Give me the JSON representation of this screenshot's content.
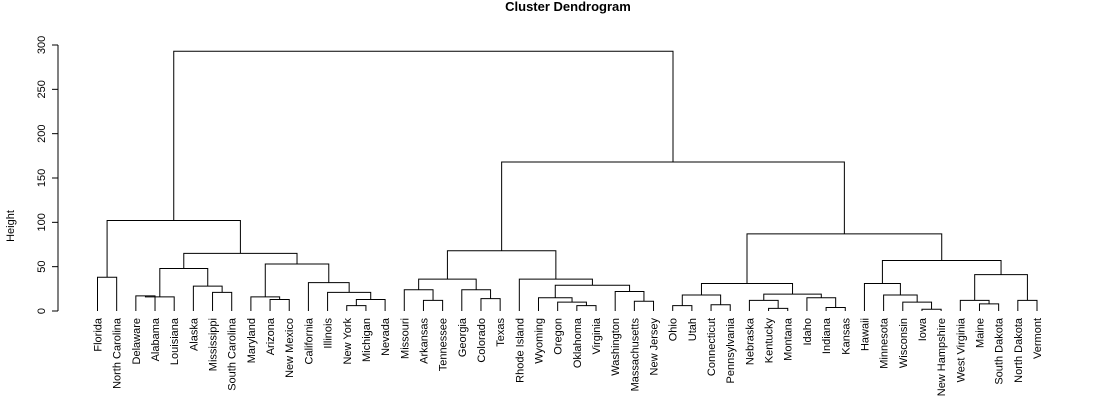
{
  "chart_data": {
    "type": "dendrogram",
    "title": "Cluster Dendrogram",
    "xlabel": "",
    "ylabel": "Height",
    "ylim": [
      0,
      300
    ],
    "yticks": [
      0,
      50,
      100,
      150,
      200,
      250,
      300
    ],
    "leaves": [
      "Florida",
      "North Carolina",
      "Delaware",
      "Alabama",
      "Louisiana",
      "Alaska",
      "Mississippi",
      "South Carolina",
      "Maryland",
      "Arizona",
      "New Mexico",
      "California",
      "Illinois",
      "New York",
      "Michigan",
      "Nevada",
      "Missouri",
      "Arkansas",
      "Tennessee",
      "Georgia",
      "Colorado",
      "Texas",
      "Rhode Island",
      "Wyoming",
      "Oregon",
      "Oklahoma",
      "Virginia",
      "Washington",
      "Massachusetts",
      "New Jersey",
      "Ohio",
      "Utah",
      "Connecticut",
      "Pennsylvania",
      "Nebraska",
      "Kentucky",
      "Montana",
      "Idaho",
      "Indiana",
      "Kansas",
      "Hawaii",
      "Minnesota",
      "Wisconsin",
      "Iowa",
      "New Hampshire",
      "West Virginia",
      "Maine",
      "South Dakota",
      "North Dakota",
      "Vermont"
    ],
    "merges": [
      {
        "left": "Delaware",
        "right": "Alabama",
        "height": 17
      },
      {
        "left": 1,
        "right": "Louisiana",
        "height": 16
      },
      {
        "left": "Mississippi",
        "right": "South Carolina",
        "height": 21
      },
      {
        "left": "Alaska",
        "right": 3,
        "height": 28
      },
      {
        "left": 2,
        "right": 4,
        "height": 48
      },
      {
        "left": "Arizona",
        "right": "New Mexico",
        "height": 13
      },
      {
        "left": "Maryland",
        "right": 6,
        "height": 16
      },
      {
        "left": "New York",
        "right": "Michigan",
        "height": 6
      },
      {
        "left": 8,
        "right": "Nevada",
        "height": 13
      },
      {
        "left": "Illinois",
        "right": 9,
        "height": 21
      },
      {
        "left": "California",
        "right": 10,
        "height": 32
      },
      {
        "left": 7,
        "right": 11,
        "height": 53
      },
      {
        "left": 5,
        "right": 12,
        "height": 65
      },
      {
        "left": "Florida",
        "right": "North Carolina",
        "height": 38
      },
      {
        "left": 14,
        "right": 13,
        "height": 102
      },
      {
        "left": "Arkansas",
        "right": "Tennessee",
        "height": 12
      },
      {
        "left": "Missouri",
        "right": 16,
        "height": 24
      },
      {
        "left": "Colorado",
        "right": "Texas",
        "height": 14
      },
      {
        "left": "Georgia",
        "right": 18,
        "height": 24
      },
      {
        "left": 17,
        "right": 19,
        "height": 36
      },
      {
        "left": "Oklahoma",
        "right": "Virginia",
        "height": 6
      },
      {
        "left": "Oregon",
        "right": 21,
        "height": 10
      },
      {
        "left": "Wyoming",
        "right": 22,
        "height": 15
      },
      {
        "left": "Massachusetts",
        "right": "New Jersey",
        "height": 11
      },
      {
        "left": "Washington",
        "right": 24,
        "height": 22
      },
      {
        "left": 23,
        "right": 25,
        "height": 29
      },
      {
        "left": "Rhode Island",
        "right": 26,
        "height": 36
      },
      {
        "left": 20,
        "right": 27,
        "height": 68
      },
      {
        "left": "Ohio",
        "right": "Utah",
        "height": 6
      },
      {
        "left": "Connecticut",
        "right": "Pennsylvania",
        "height": 7
      },
      {
        "left": 29,
        "right": 30,
        "height": 18
      },
      {
        "left": "Kentucky",
        "right": "Montana",
        "height": 3
      },
      {
        "left": "Nebraska",
        "right": 32,
        "height": 12
      },
      {
        "left": "Indiana",
        "right": "Kansas",
        "height": 4
      },
      {
        "left": "Idaho",
        "right": 34,
        "height": 15
      },
      {
        "left": 33,
        "right": 35,
        "height": 19
      },
      {
        "left": 31,
        "right": 36,
        "height": 31
      },
      {
        "left": "Iowa",
        "right": "New Hampshire",
        "height": 2
      },
      {
        "left": "Wisconsin",
        "right": 38,
        "height": 10
      },
      {
        "left": "Minnesota",
        "right": 39,
        "height": 18
      },
      {
        "left": "Hawaii",
        "right": 40,
        "height": 31
      },
      {
        "left": "Maine",
        "right": "South Dakota",
        "height": 8
      },
      {
        "left": "West Virginia",
        "right": 42,
        "height": 12
      },
      {
        "left": "North Dakota",
        "right": "Vermont",
        "height": 12
      },
      {
        "left": 43,
        "right": 44,
        "height": 41
      },
      {
        "left": 41,
        "right": 45,
        "height": 57
      },
      {
        "left": 37,
        "right": 46,
        "height": 87
      },
      {
        "left": 28,
        "right": 47,
        "height": 168
      },
      {
        "left": 15,
        "right": 48,
        "height": 293
      }
    ]
  }
}
